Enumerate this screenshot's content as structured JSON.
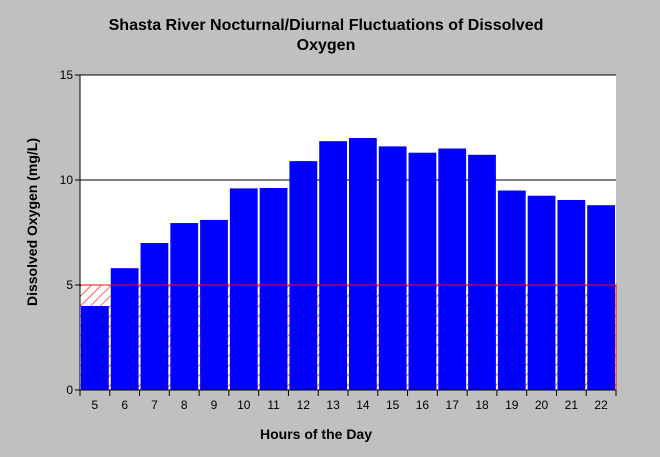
{
  "chart_data": {
    "type": "bar",
    "title": "Shasta River Nocturnal/Diurnal Fluctuations of Dissolved Oxygen",
    "title_lines": [
      "Shasta River Nocturnal/Diurnal Fluctuations of Dissolved",
      "Oxygen"
    ],
    "xlabel": "Hours of the Day",
    "ylabel": "Dissolved Oxygen (mg/L)",
    "categories": [
      "5",
      "6",
      "7",
      "8",
      "9",
      "10",
      "11",
      "12",
      "13",
      "14",
      "15",
      "16",
      "17",
      "18",
      "19",
      "20",
      "21",
      "22"
    ],
    "values": [
      4.0,
      5.8,
      7.0,
      7.95,
      8.1,
      9.6,
      9.62,
      10.9,
      11.85,
      12.0,
      11.6,
      11.3,
      11.5,
      11.2,
      9.5,
      9.25,
      9.05,
      8.8
    ],
    "ylim": [
      0,
      15
    ],
    "yticks": [
      0,
      5,
      10,
      15
    ],
    "grid": true,
    "threshold": {
      "value": 5,
      "color": "#ff0000",
      "fill_pattern": "hatched"
    },
    "colors": {
      "bar": "#0000ff",
      "plot_background": "#ffffff",
      "page_background": "#c0c0c0",
      "threshold": "#ff0000"
    }
  }
}
